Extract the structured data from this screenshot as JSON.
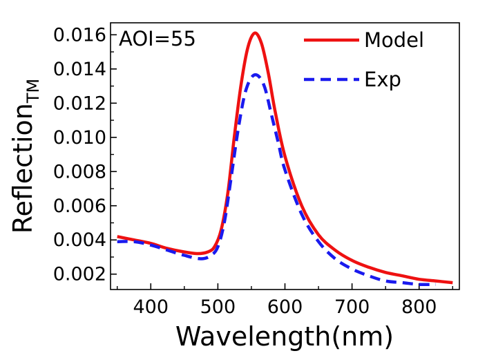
{
  "chart_data": {
    "type": "line",
    "xlabel": "Wavelength(nm)",
    "ylabel": "Reflection",
    "ylabel_subscript": "TM",
    "annotation": "AOI=55",
    "xlim": [
      340,
      860
    ],
    "ylim": [
      0.0011,
      0.0167
    ],
    "xticks": [
      400,
      500,
      600,
      700,
      800
    ],
    "yticks": [
      0.002,
      0.004,
      0.006,
      0.008,
      0.01,
      0.012,
      0.014,
      0.016
    ],
    "xtick_labels": [
      "400",
      "500",
      "600",
      "700",
      "800"
    ],
    "ytick_labels": [
      "0.002",
      "0.004",
      "0.006",
      "0.008",
      "0.010",
      "0.012",
      "0.014",
      "0.016"
    ],
    "legend_position": "top-right",
    "grid": false,
    "series": [
      {
        "name": "Model",
        "color": "#ee1111",
        "style": "solid",
        "x": [
          350,
          375,
          400,
          425,
          450,
          470,
          485,
          495,
          505,
          515,
          525,
          535,
          545,
          555,
          565,
          575,
          585,
          600,
          625,
          650,
          675,
          700,
          725,
          750,
          775,
          800,
          825,
          850
        ],
        "y": [
          0.0042,
          0.004,
          0.0038,
          0.0035,
          0.0033,
          0.0032,
          0.0033,
          0.0036,
          0.0046,
          0.0068,
          0.0102,
          0.0132,
          0.0153,
          0.0161,
          0.0155,
          0.0138,
          0.0116,
          0.0089,
          0.006,
          0.0043,
          0.0034,
          0.0028,
          0.0024,
          0.0021,
          0.0019,
          0.0017,
          0.0016,
          0.0015
        ]
      },
      {
        "name": "Exp",
        "color": "#1a1aee",
        "style": "dashed",
        "x": [
          350,
          375,
          400,
          425,
          450,
          475,
          490,
          500,
          510,
          520,
          530,
          540,
          550,
          560,
          570,
          580,
          590,
          600,
          625,
          650,
          675,
          700,
          725,
          750,
          775,
          800,
          825
        ],
        "y": [
          0.0039,
          0.0039,
          0.0037,
          0.0034,
          0.0031,
          0.0029,
          0.0031,
          0.0036,
          0.0051,
          0.0077,
          0.0104,
          0.0125,
          0.0135,
          0.0136,
          0.0129,
          0.0113,
          0.0097,
          0.0081,
          0.0055,
          0.0039,
          0.0029,
          0.0023,
          0.0019,
          0.0016,
          0.0015,
          0.0014,
          0.0014
        ]
      }
    ]
  }
}
